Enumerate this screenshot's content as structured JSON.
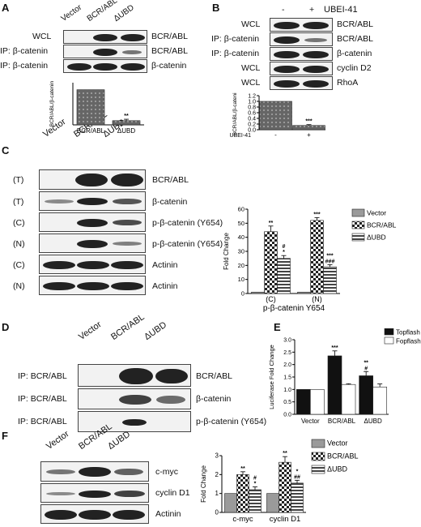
{
  "figure": {
    "panels": {
      "A": {
        "label": "A",
        "lanes": [
          "Vector",
          "BCR/ABL",
          "ΔUBD"
        ],
        "rows": [
          {
            "left": "WCL",
            "right": "BCR/ABL"
          },
          {
            "left": "IP: β-catenin",
            "right": "BCR/ABL"
          },
          {
            "left": "IP: β-catenin",
            "right": "β-catenin"
          }
        ]
      },
      "B": {
        "label": "B",
        "treat_label": "UBEI-41",
        "lanes": [
          "-",
          "+"
        ],
        "rows": [
          {
            "left": "WCL",
            "right": "BCR/ABL"
          },
          {
            "left": "IP: β-catenin",
            "right": "BCR/ABL"
          },
          {
            "left": "IP: β-catenin",
            "right": "β-catenin"
          },
          {
            "left": "WCL",
            "right": "cyclin D2"
          },
          {
            "left": "WCL",
            "right": "RhoA"
          }
        ]
      },
      "C": {
        "label": "C",
        "lanes": [
          "Vector",
          "BCR/ABL",
          "ΔUBD"
        ],
        "rows": [
          {
            "left": "(T)",
            "right": "BCR/ABL"
          },
          {
            "left": "(T)",
            "right": "β-catenin"
          },
          {
            "left": "(C)",
            "right": "p-β-catenin (Y654)"
          },
          {
            "left": "(N)",
            "right": "p-β-catenin (Y654)"
          },
          {
            "left": "(C)",
            "right": "Actinin"
          },
          {
            "left": "(N)",
            "right": "Actinin"
          }
        ]
      },
      "D": {
        "label": "D",
        "lanes": [
          "Vector",
          "BCR/ABL",
          "ΔUBD"
        ],
        "rows": [
          {
            "left": "IP: BCR/ABL",
            "right": "BCR/ABL"
          },
          {
            "left": "IP: BCR/ABL",
            "right": "β-catenin"
          },
          {
            "left": "IP: BCR/ABL",
            "right": "p-β-catenin (Y654)"
          }
        ]
      },
      "E": {
        "label": "E"
      },
      "F": {
        "label": "F",
        "lanes": [
          "Vector",
          "BCR/ABL",
          "ΔUBD"
        ],
        "rows": [
          {
            "left": "",
            "right": "c-myc"
          },
          {
            "left": "",
            "right": "cyclin D1"
          },
          {
            "left": "",
            "right": "Actinin"
          }
        ]
      }
    }
  },
  "chart_data": [
    {
      "id": "A",
      "type": "bar",
      "categories": [
        "BCR/ABL",
        "ΔUBD"
      ],
      "values": [
        1.0,
        0.12
      ],
      "errors": [
        0,
        0.04
      ],
      "annotations": [
        "",
        "**"
      ],
      "ylabel": "BCR/ABL/β-catenin",
      "ylim": [
        0,
        1.2
      ]
    },
    {
      "id": "B",
      "type": "bar",
      "categories": [
        "-",
        "+"
      ],
      "values": [
        1.0,
        0.15
      ],
      "errors": [
        0,
        0.03
      ],
      "annotations": [
        "",
        "***"
      ],
      "xlabel": "UBEI-41",
      "ylabel": "BCR/ABL/β-catenin",
      "ylim": [
        0,
        1.2
      ],
      "yticks": [
        "0.0",
        "0.2",
        "0.4",
        "0.6",
        "0.8",
        "1.0",
        "1.2"
      ]
    },
    {
      "id": "C",
      "type": "bar",
      "categories": [
        "(C)",
        "(N)"
      ],
      "xlabel": "p-β-catenin Y654",
      "ylabel": "Fold Change",
      "ylim": [
        0,
        60
      ],
      "yticks": [
        "0",
        "10",
        "20",
        "30",
        "40",
        "50",
        "60"
      ],
      "legend": "right",
      "series": [
        {
          "name": "Vector",
          "values": [
            1,
            1
          ],
          "errors": [
            0,
            0
          ],
          "annotations": [
            "",
            ""
          ]
        },
        {
          "name": "BCR/ABL",
          "values": [
            44,
            52
          ],
          "errors": [
            4,
            2
          ],
          "annotations": [
            "**",
            "***"
          ]
        },
        {
          "name": "ΔUBD",
          "values": [
            25,
            19
          ],
          "errors": [
            2,
            1.5
          ],
          "annotations": [
            "#\n*",
            "***\n###"
          ]
        }
      ]
    },
    {
      "id": "E",
      "type": "bar",
      "categories": [
        "Vector",
        "BCR/ABL",
        "ΔUBD"
      ],
      "ylabel": "Luciferase Fold Change",
      "ylim": [
        0,
        3.0
      ],
      "yticks": [
        "0.0",
        "0.5",
        "1.0",
        "1.5",
        "2.0",
        "2.5",
        "3.0"
      ],
      "legend": "top-right",
      "series": [
        {
          "name": "Topflash",
          "values": [
            1.0,
            2.35,
            1.55
          ],
          "errors": [
            0,
            0.2,
            0.17
          ],
          "annotations": [
            "",
            "***",
            "**\n#"
          ]
        },
        {
          "name": "Fopflash",
          "values": [
            1.0,
            1.2,
            1.1
          ],
          "errors": [
            0,
            0.03,
            0.12
          ],
          "annotations": [
            "",
            "",
            ""
          ]
        }
      ]
    },
    {
      "id": "F",
      "type": "bar",
      "categories": [
        "c-myc",
        "cyclin D1"
      ],
      "ylabel": "Fold Change",
      "ylim": [
        0,
        3
      ],
      "yticks": [
        "0",
        "1",
        "2",
        "3"
      ],
      "legend": "right",
      "series": [
        {
          "name": "Vector",
          "values": [
            1,
            1
          ],
          "errors": [
            0,
            0
          ],
          "annotations": [
            "",
            ""
          ]
        },
        {
          "name": "BCR/ABL",
          "values": [
            2.0,
            2.65
          ],
          "errors": [
            0.15,
            0.3
          ],
          "annotations": [
            "**",
            "**"
          ]
        },
        {
          "name": "ΔUBD",
          "values": [
            1.2,
            1.55
          ],
          "errors": [
            0.15,
            0.15
          ],
          "annotations": [
            "#\n*",
            "*\n##"
          ]
        }
      ]
    }
  ]
}
